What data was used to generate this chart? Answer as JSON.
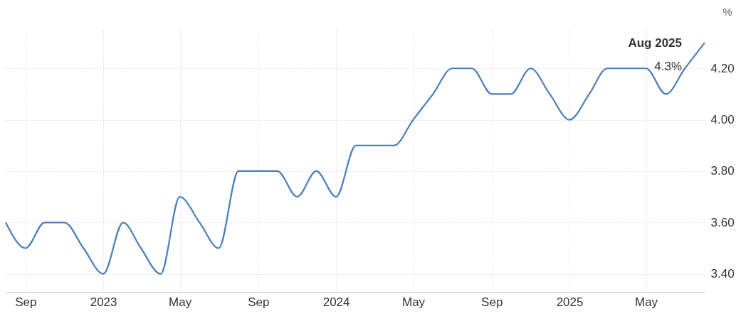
{
  "chart_data": {
    "type": "line",
    "ylabel": "%",
    "x": [
      "2022-08",
      "2022-09",
      "2022-10",
      "2022-11",
      "2022-12",
      "2023-01",
      "2023-02",
      "2023-03",
      "2023-04",
      "2023-05",
      "2023-06",
      "2023-07",
      "2023-08",
      "2023-09",
      "2023-10",
      "2023-11",
      "2023-12",
      "2024-01",
      "2024-02",
      "2024-03",
      "2024-04",
      "2024-05",
      "2024-06",
      "2024-07",
      "2024-08",
      "2024-09",
      "2024-10",
      "2024-11",
      "2024-12",
      "2025-01",
      "2025-02",
      "2025-03",
      "2025-04",
      "2025-05",
      "2025-06",
      "2025-07",
      "2025-08"
    ],
    "series": [
      {
        "color": "#4a7ebb",
        "values": [
          3.6,
          3.5,
          3.6,
          3.6,
          3.5,
          3.4,
          3.6,
          3.5,
          3.4,
          3.7,
          3.6,
          3.5,
          3.8,
          3.8,
          3.8,
          3.7,
          3.8,
          3.7,
          3.9,
          3.9,
          3.9,
          4.0,
          4.1,
          4.2,
          4.2,
          4.1,
          4.1,
          4.2,
          4.1,
          4.0,
          4.1,
          4.2,
          4.2,
          4.2,
          4.1,
          4.2,
          4.3
        ]
      }
    ],
    "xlim": [
      "2022-08",
      "2025-08"
    ],
    "xticks": [
      {
        "value": "2022-09",
        "label": "Sep"
      },
      {
        "value": "2023-01",
        "label": "2023"
      },
      {
        "value": "2023-05",
        "label": "May"
      },
      {
        "value": "2023-09",
        "label": "Sep"
      },
      {
        "value": "2024-01",
        "label": "2024"
      },
      {
        "value": "2024-05",
        "label": "May"
      },
      {
        "value": "2024-09",
        "label": "Sep"
      },
      {
        "value": "2025-01",
        "label": "2025"
      },
      {
        "value": "2025-05",
        "label": "May"
      }
    ],
    "ylim": [
      3.33,
      4.35
    ],
    "yticks": [
      {
        "value": 3.4,
        "label": "3.40"
      },
      {
        "value": 3.6,
        "label": "3.60"
      },
      {
        "value": 3.8,
        "label": "3.80"
      },
      {
        "value": 4.0,
        "label": "4.00"
      },
      {
        "value": 4.2,
        "label": "4.20"
      }
    ],
    "grid": true,
    "annotations": [
      {
        "text": "Aug 2025",
        "x": "2025-08",
        "y": 4.3
      },
      {
        "text": "4.3%",
        "x": "2025-08",
        "y": 4.3
      }
    ]
  }
}
